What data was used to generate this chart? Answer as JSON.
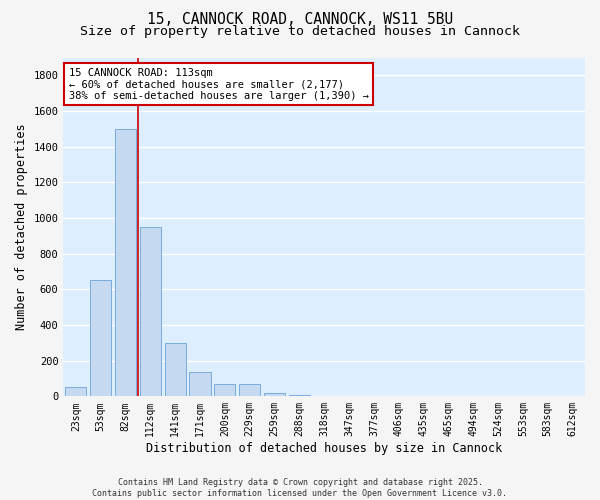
{
  "title_line1": "15, CANNOCK ROAD, CANNOCK, WS11 5BU",
  "title_line2": "Size of property relative to detached houses in Cannock",
  "xlabel": "Distribution of detached houses by size in Cannock",
  "ylabel": "Number of detached properties",
  "footnote_line1": "Contains HM Land Registry data © Crown copyright and database right 2025.",
  "footnote_line2": "Contains public sector information licensed under the Open Government Licence v3.0.",
  "categories": [
    "23sqm",
    "53sqm",
    "82sqm",
    "112sqm",
    "141sqm",
    "171sqm",
    "200sqm",
    "229sqm",
    "259sqm",
    "288sqm",
    "318sqm",
    "347sqm",
    "377sqm",
    "406sqm",
    "435sqm",
    "465sqm",
    "494sqm",
    "524sqm",
    "553sqm",
    "583sqm",
    "612sqm"
  ],
  "values": [
    50,
    650,
    1500,
    950,
    300,
    135,
    70,
    70,
    20,
    5,
    0,
    0,
    0,
    0,
    0,
    0,
    0,
    0,
    0,
    0,
    0
  ],
  "bar_color": "#c5d9f0",
  "bar_edge_color": "#7aabdb",
  "vline_color": "#cc0000",
  "vline_x": 2.5,
  "annotation_line1": "15 CANNOCK ROAD: 113sqm",
  "annotation_line2": "← 60% of detached houses are smaller (2,177)",
  "annotation_line3": "38% of semi-detached houses are larger (1,390) →",
  "annotation_box_facecolor": "#ffffff",
  "annotation_box_edgecolor": "#cc0000",
  "ylim": [
    0,
    1900
  ],
  "yticks": [
    0,
    200,
    400,
    600,
    800,
    1000,
    1200,
    1400,
    1600,
    1800
  ],
  "background_color": "#ddeeff",
  "fig_facecolor": "#f5f5f5",
  "grid_color": "#ffffff",
  "title_fontsize": 10.5,
  "subtitle_fontsize": 9.5,
  "axis_label_fontsize": 8.5,
  "tick_fontsize": 7,
  "footnote_fontsize": 6,
  "annotation_fontsize": 7.5
}
